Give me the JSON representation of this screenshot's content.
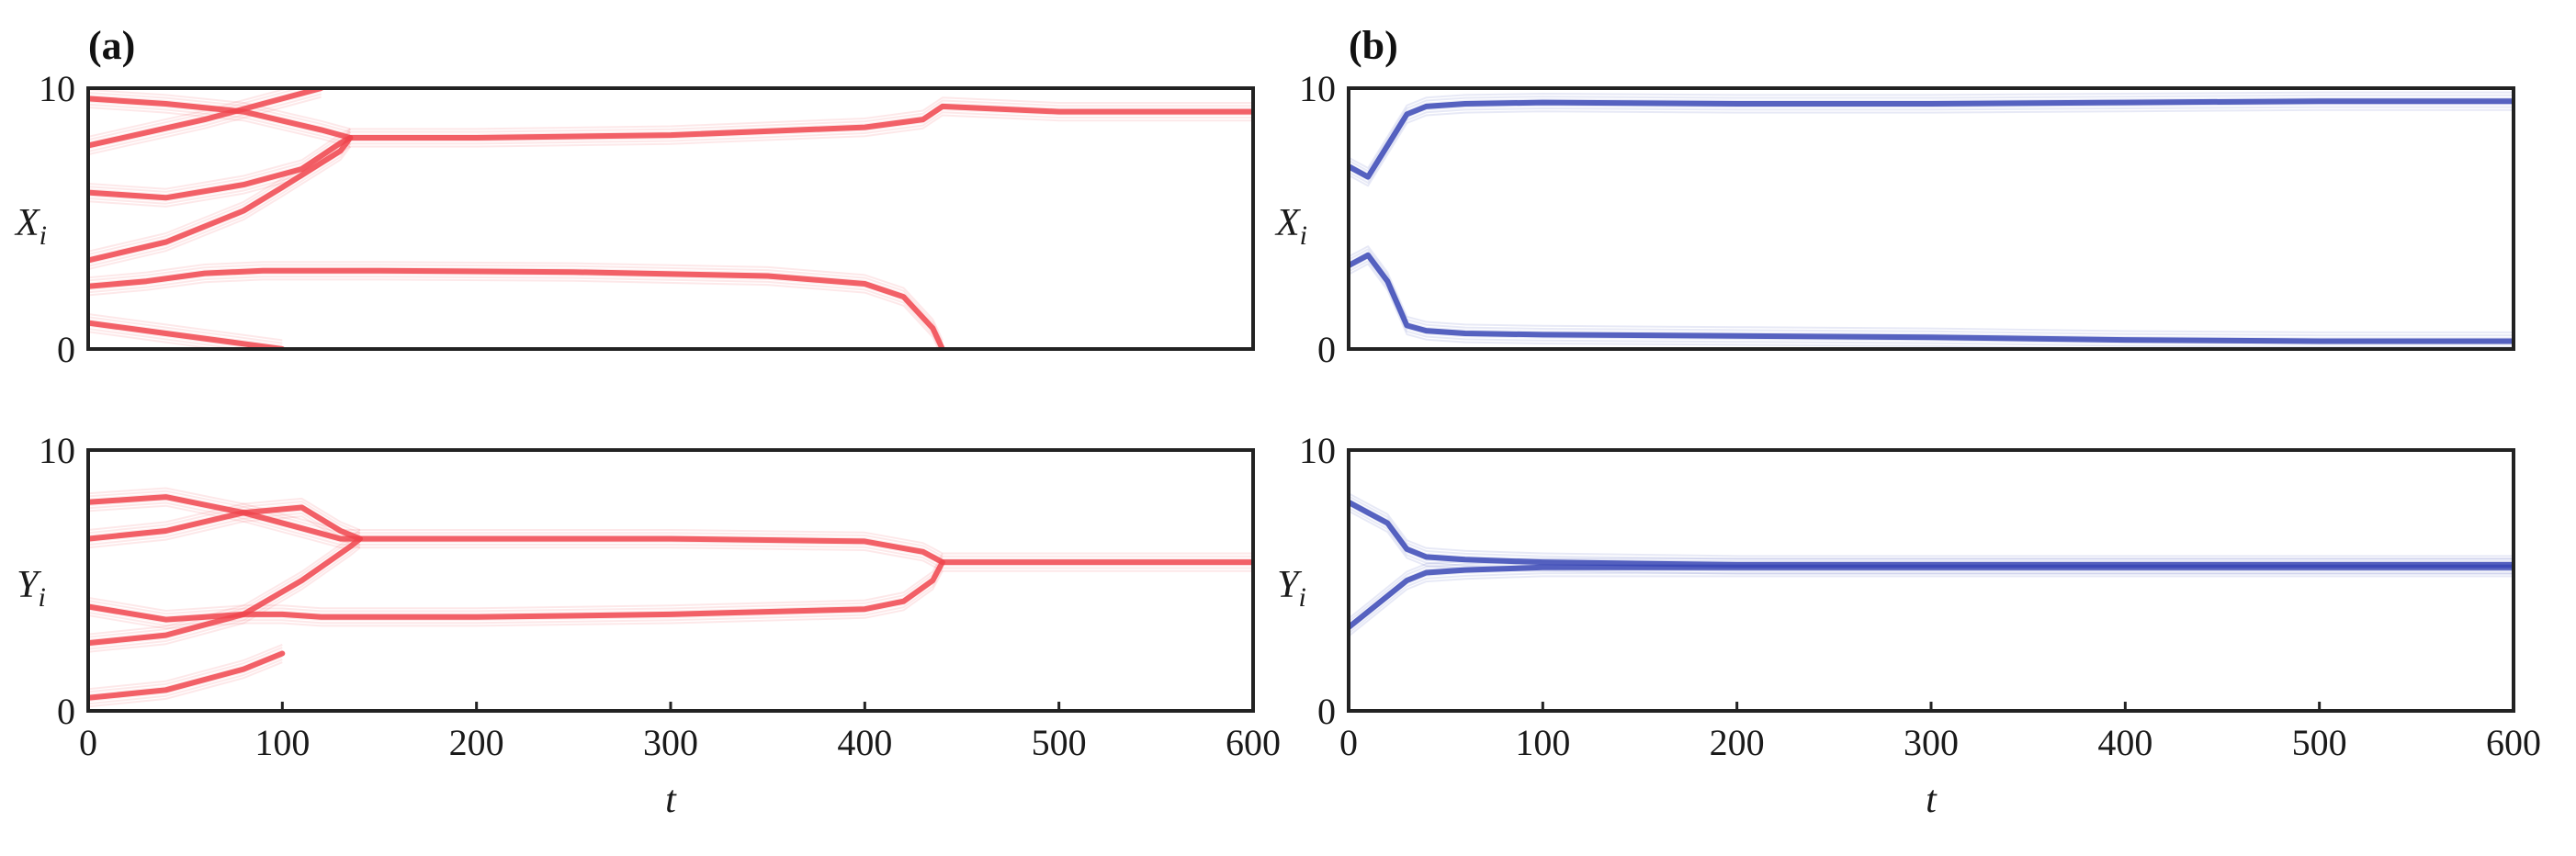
{
  "panel_labels": {
    "a": "(a)",
    "b": "(b)"
  },
  "chart_data": [
    {
      "id": "a-X",
      "panel": "(a)",
      "type": "line",
      "color": "#f0444c",
      "ylabel_main": "X",
      "ylabel_sub": "i",
      "xlabel": "",
      "xlim": [
        0,
        600
      ],
      "ylim": [
        0,
        10
      ],
      "xticks": [],
      "yticks": [
        "0",
        "10"
      ],
      "series": [
        {
          "x": [
            0,
            40,
            80,
            120,
            135,
            200,
            300,
            400,
            430,
            440,
            500,
            600
          ],
          "y": [
            9.6,
            9.4,
            9.1,
            8.4,
            8.1,
            8.1,
            8.2,
            8.5,
            8.8,
            9.3,
            9.1,
            9.1
          ]
        },
        {
          "x": [
            0,
            40,
            80,
            110,
            130,
            135
          ],
          "y": [
            6.0,
            5.8,
            6.3,
            6.9,
            7.9,
            8.1
          ]
        },
        {
          "x": [
            0,
            40,
            80,
            100,
            130,
            135
          ],
          "y": [
            3.4,
            4.1,
            5.3,
            6.2,
            7.6,
            8.1
          ]
        },
        {
          "x": [
            0,
            30,
            60,
            90,
            150,
            250,
            350,
            400,
            420,
            435,
            440
          ],
          "y": [
            2.4,
            2.6,
            2.9,
            3.0,
            3.0,
            2.95,
            2.8,
            2.5,
            2.0,
            0.8,
            0.0
          ]
        },
        {
          "x": [
            0,
            40,
            80,
            100
          ],
          "y": [
            1.0,
            0.6,
            0.2,
            0.0
          ]
        },
        {
          "x": [
            0,
            30,
            60,
            90,
            120
          ],
          "y": [
            7.8,
            8.3,
            8.8,
            9.4,
            10.0
          ]
        }
      ]
    },
    {
      "id": "a-Y",
      "panel": "(a)",
      "type": "line",
      "color": "#f0444c",
      "ylabel_main": "Y",
      "ylabel_sub": "i",
      "xlabel": "t",
      "xlim": [
        0,
        600
      ],
      "ylim": [
        0,
        10
      ],
      "xticks": [
        "0",
        "100",
        "200",
        "300",
        "400",
        "500",
        "600"
      ],
      "yticks": [
        "0",
        "10"
      ],
      "series": [
        {
          "x": [
            0,
            40,
            80,
            110,
            130,
            140,
            200,
            300,
            400,
            430,
            440,
            500,
            600
          ],
          "y": [
            8.0,
            8.2,
            7.6,
            7.0,
            6.6,
            6.6,
            6.6,
            6.6,
            6.5,
            6.1,
            5.7,
            5.7,
            5.7
          ]
        },
        {
          "x": [
            0,
            40,
            80,
            110,
            130,
            140
          ],
          "y": [
            6.6,
            6.9,
            7.6,
            7.8,
            6.9,
            6.6
          ]
        },
        {
          "x": [
            0,
            40,
            80,
            110,
            135,
            140
          ],
          "y": [
            2.6,
            2.9,
            3.7,
            5.0,
            6.3,
            6.6
          ]
        },
        {
          "x": [
            0,
            40,
            80,
            100,
            120,
            200,
            300,
            400,
            420,
            435,
            440
          ],
          "y": [
            4.0,
            3.5,
            3.7,
            3.7,
            3.6,
            3.6,
            3.7,
            3.9,
            4.2,
            5.0,
            5.7
          ]
        },
        {
          "x": [
            0,
            40,
            80,
            100
          ],
          "y": [
            0.5,
            0.8,
            1.6,
            2.2
          ]
        }
      ]
    },
    {
      "id": "b-X",
      "panel": "(b)",
      "type": "line",
      "color": "#3846b5",
      "ylabel_main": "X",
      "ylabel_sub": "i",
      "xlabel": "",
      "xlim": [
        0,
        600
      ],
      "ylim": [
        0,
        10
      ],
      "xticks": [],
      "yticks": [
        "0",
        "10"
      ],
      "series": [
        {
          "x": [
            0,
            10,
            20,
            30,
            40,
            60,
            100,
            200,
            300,
            400,
            500,
            600
          ],
          "y": [
            7.0,
            6.6,
            7.8,
            9.0,
            9.3,
            9.4,
            9.45,
            9.4,
            9.4,
            9.45,
            9.5,
            9.5
          ]
        },
        {
          "x": [
            0,
            10,
            20,
            30,
            40,
            60,
            100,
            200,
            300,
            400,
            500,
            600
          ],
          "y": [
            3.2,
            3.6,
            2.6,
            0.9,
            0.7,
            0.6,
            0.55,
            0.5,
            0.45,
            0.35,
            0.3,
            0.3
          ]
        }
      ]
    },
    {
      "id": "b-Y",
      "panel": "(b)",
      "type": "line",
      "color": "#3846b5",
      "ylabel_main": "Y",
      "ylabel_sub": "i",
      "xlabel": "t",
      "xlim": [
        0,
        600
      ],
      "ylim": [
        0,
        10
      ],
      "xticks": [
        "0",
        "100",
        "200",
        "300",
        "400",
        "500",
        "600"
      ],
      "yticks": [
        "0",
        "10"
      ],
      "series": [
        {
          "x": [
            0,
            10,
            20,
            30,
            40,
            60,
            100,
            200,
            300,
            400,
            500,
            600
          ],
          "y": [
            8.0,
            7.6,
            7.2,
            6.2,
            5.9,
            5.8,
            5.7,
            5.6,
            5.6,
            5.6,
            5.6,
            5.6
          ]
        },
        {
          "x": [
            0,
            10,
            20,
            30,
            40,
            60,
            100,
            200,
            300,
            400,
            500,
            600
          ],
          "y": [
            3.2,
            3.8,
            4.4,
            5.0,
            5.3,
            5.4,
            5.5,
            5.5,
            5.5,
            5.5,
            5.5,
            5.5
          ]
        }
      ]
    }
  ]
}
